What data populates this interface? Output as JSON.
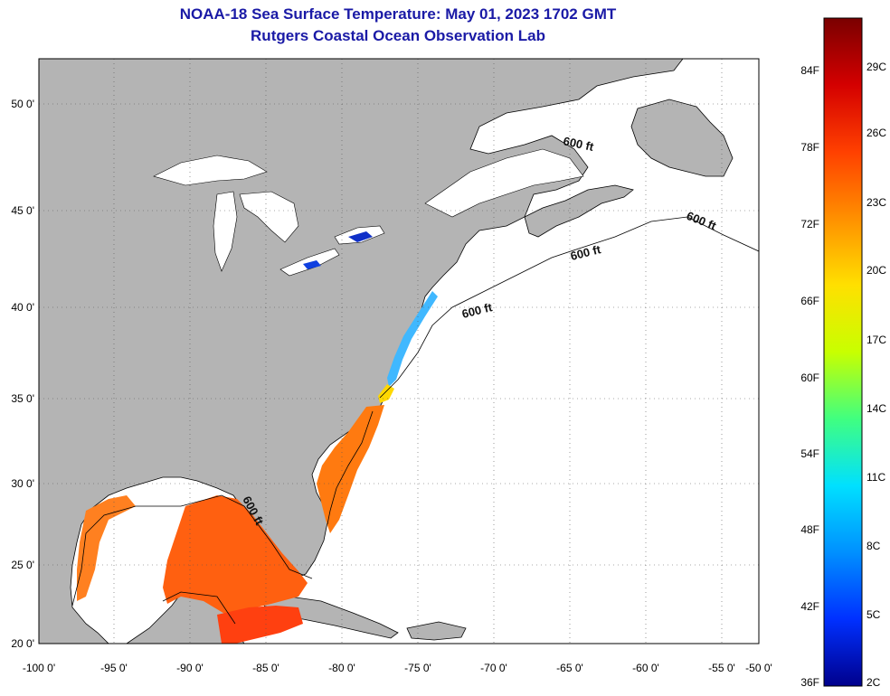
{
  "header": {
    "title": "NOAA-18 Sea Surface Temperature:  May 01, 2023 1702 GMT",
    "subtitle": "Rutgers Coastal Ocean Observation Lab"
  },
  "map": {
    "lon_range": [
      -100,
      -50
    ],
    "lat_range": [
      20,
      52.5
    ],
    "lon_labels": [
      "-100 0'",
      "-95 0'",
      "-90 0'",
      "-85 0'",
      "-80 0'",
      "-75 0'",
      "-70 0'",
      "-65 0'",
      "-60 0'",
      "-55 0'",
      "-50 0'"
    ],
    "lat_labels": [
      "20 0'",
      "25 0'",
      "30 0'",
      "35 0'",
      "40 0'",
      "45 0'",
      "50 0'"
    ],
    "isobath_labels": [
      "600 ft",
      "600 ft",
      "600 ft",
      "600 ft",
      "600 ft"
    ],
    "land_color": "#b4b4b4",
    "water_color": "#ffffff"
  },
  "colorbar": {
    "fahrenheit": [
      "84F",
      "78F",
      "72F",
      "66F",
      "60F",
      "54F",
      "48F",
      "42F",
      "36F"
    ],
    "celsius": [
      "29C",
      "26C",
      "23C",
      "20C",
      "17C",
      "14C",
      "11C",
      "8C",
      "5C",
      "2C"
    ],
    "colors": [
      "#7a0000",
      "#d40000",
      "#ff4000",
      "#ff9000",
      "#ffe000",
      "#c8ff00",
      "#40ff80",
      "#00e0ff",
      "#0090ff",
      "#0030ff",
      "#00008c"
    ]
  }
}
